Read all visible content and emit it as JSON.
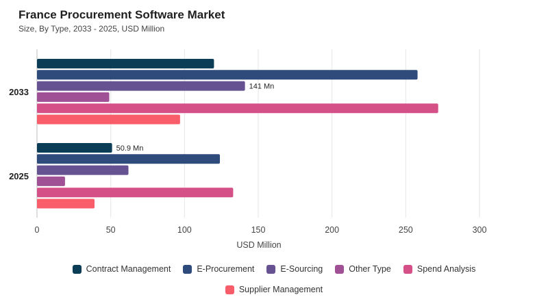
{
  "title": "France Procurement Software Market",
  "subtitle": "Size, By Type, 2033 - 2025, USD Million",
  "chart_data": {
    "type": "bar",
    "orientation": "horizontal",
    "categories": [
      "2033",
      "2025"
    ],
    "xlabel": "USD Million",
    "ylabel": "",
    "xlim": [
      0,
      300
    ],
    "xticks": [
      0,
      50,
      100,
      150,
      200,
      250,
      300
    ],
    "grid": true,
    "legend_position": "bottom",
    "series": [
      {
        "name": "Contract Management",
        "color": "#0b3d56",
        "values": [
          120,
          50.9
        ]
      },
      {
        "name": "E-Procurement",
        "color": "#2f4b7c",
        "values": [
          258,
          124
        ]
      },
      {
        "name": "E-Sourcing",
        "color": "#665191",
        "values": [
          141,
          62
        ]
      },
      {
        "name": "Other Type",
        "color": "#a05195",
        "values": [
          49,
          19
        ]
      },
      {
        "name": "Spend Analysis",
        "color": "#d45087",
        "values": [
          272,
          133
        ]
      },
      {
        "name": "Supplier Management",
        "color": "#f95d6a",
        "values": [
          97,
          39
        ]
      }
    ],
    "annotations": [
      {
        "category": "2033",
        "series": "E-Sourcing",
        "text": "141 Mn"
      },
      {
        "category": "2025",
        "series": "Contract Management",
        "text": "50.9 Mn"
      }
    ]
  }
}
